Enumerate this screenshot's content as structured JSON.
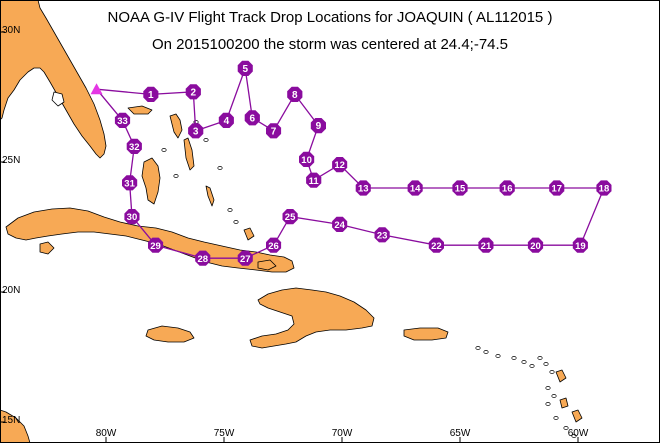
{
  "title": "NOAA G-IV Flight Track Drop Locations for JOAQUIN ( AL112015 )",
  "subtitle": "On 2015100200 the storm was centered at 24.4;-74.5",
  "lat_labels": [
    "30N",
    "25N",
    "20N",
    "15N"
  ],
  "lon_labels": [
    "80W",
    "75W",
    "70W",
    "65W",
    "60W"
  ],
  "colors": {
    "land": "#f7a955",
    "coast": "#000000",
    "track": "#8a0c9e",
    "marker": "#8a0c9e",
    "marker_text": "#ffffff",
    "origin": "#e436e4"
  },
  "origin": {
    "lon": -80.4,
    "lat": 27.8,
    "symbol": "triangle"
  },
  "drops": [
    {
      "id": "1",
      "lon": -78.1,
      "lat": 27.6
    },
    {
      "id": "2",
      "lon": -76.3,
      "lat": 27.7
    },
    {
      "id": "3",
      "lon": -76.2,
      "lat": 26.2
    },
    {
      "id": "4",
      "lon": -74.9,
      "lat": 26.6
    },
    {
      "id": "5",
      "lon": -74.1,
      "lat": 28.6
    },
    {
      "id": "6",
      "lon": -73.8,
      "lat": 26.7
    },
    {
      "id": "7",
      "lon": -72.9,
      "lat": 26.2
    },
    {
      "id": "8",
      "lon": -72.0,
      "lat": 27.6
    },
    {
      "id": "9",
      "lon": -71.0,
      "lat": 26.4
    },
    {
      "id": "10",
      "lon": -71.5,
      "lat": 25.1
    },
    {
      "id": "11",
      "lon": -71.2,
      "lat": 24.3
    },
    {
      "id": "12",
      "lon": -70.1,
      "lat": 24.9
    },
    {
      "id": "13",
      "lon": -69.1,
      "lat": 24.0
    },
    {
      "id": "14",
      "lon": -66.9,
      "lat": 24.0
    },
    {
      "id": "15",
      "lon": -65.0,
      "lat": 24.0
    },
    {
      "id": "16",
      "lon": -63.0,
      "lat": 24.0
    },
    {
      "id": "17",
      "lon": -60.9,
      "lat": 24.0
    },
    {
      "id": "18",
      "lon": -58.9,
      "lat": 24.0
    },
    {
      "id": "19",
      "lon": -59.9,
      "lat": 21.8
    },
    {
      "id": "20",
      "lon": -61.8,
      "lat": 21.8
    },
    {
      "id": "21",
      "lon": -63.9,
      "lat": 21.8
    },
    {
      "id": "22",
      "lon": -66.0,
      "lat": 21.8
    },
    {
      "id": "23",
      "lon": -68.3,
      "lat": 22.2
    },
    {
      "id": "24",
      "lon": -70.1,
      "lat": 22.6
    },
    {
      "id": "25",
      "lon": -72.2,
      "lat": 22.9
    },
    {
      "id": "26",
      "lon": -72.9,
      "lat": 21.8
    },
    {
      "id": "27",
      "lon": -74.1,
      "lat": 21.3
    },
    {
      "id": "28",
      "lon": -75.9,
      "lat": 21.3
    },
    {
      "id": "29",
      "lon": -77.9,
      "lat": 21.8
    },
    {
      "id": "30",
      "lon": -78.9,
      "lat": 22.9
    },
    {
      "id": "31",
      "lon": -79.0,
      "lat": 24.2
    },
    {
      "id": "32",
      "lon": -78.8,
      "lat": 25.6
    },
    {
      "id": "33",
      "lon": -79.3,
      "lat": 26.6
    }
  ]
}
